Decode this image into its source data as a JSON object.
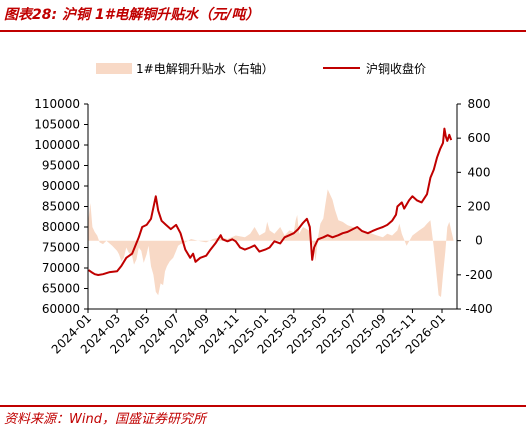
{
  "figure": {
    "title": "图表28:  沪铜 1#电解铜升贴水（元/吨）",
    "source": "资料来源：Wind，国盛证券研究所"
  },
  "colors": {
    "line": "#c00000",
    "area": "#f8d9c6",
    "accent": "#c00000"
  },
  "chart_data": {
    "type": "line",
    "title": "",
    "xlabel": "",
    "ylabel": "",
    "y_left_lim": [
      60000,
      110000
    ],
    "y_left_ticks": [
      "60000",
      "65000",
      "70000",
      "75000",
      "80000",
      "85000",
      "90000",
      "95000",
      "100000",
      "105000",
      "110000"
    ],
    "y_right_lim": [
      -400,
      800
    ],
    "y_right_ticks": [
      "-400",
      "-200",
      "0",
      "200",
      "400",
      "600",
      "800"
    ],
    "x_lim": [
      "2024-01-01",
      "2026-02-01"
    ],
    "x_ticks": [
      "2024-01",
      "2024-03",
      "2024-05",
      "2024-07",
      "2024-09",
      "2024-11",
      "2025-01",
      "2025-03",
      "2025-05",
      "2025-07",
      "2025-09",
      "2025-11",
      "2026-01"
    ],
    "legend": {
      "position": "top"
    },
    "grid": false,
    "series": [
      {
        "name": "1#电解铜升贴水（右轴）",
        "type": "area",
        "axis": "right",
        "points": [
          [
            "2024-01-02",
            130
          ],
          [
            "2024-01-06",
            220
          ],
          [
            "2024-01-10",
            80
          ],
          [
            "2024-01-15",
            50
          ],
          [
            "2024-01-20",
            30
          ],
          [
            "2024-01-25",
            -10
          ],
          [
            "2024-02-01",
            -20
          ],
          [
            "2024-02-08",
            0
          ],
          [
            "2024-02-20",
            -30
          ],
          [
            "2024-03-01",
            -60
          ],
          [
            "2024-03-05",
            -80
          ],
          [
            "2024-03-10",
            -120
          ],
          [
            "2024-03-15",
            -100
          ],
          [
            "2024-03-20",
            -40
          ],
          [
            "2024-03-25",
            -70
          ],
          [
            "2024-04-01",
            -90
          ],
          [
            "2024-04-05",
            -140
          ],
          [
            "2024-04-10",
            -110
          ],
          [
            "2024-04-15",
            -40
          ],
          [
            "2024-04-20",
            -60
          ],
          [
            "2024-04-25",
            -130
          ],
          [
            "2024-05-01",
            -80
          ],
          [
            "2024-05-05",
            -30
          ],
          [
            "2024-05-10",
            -150
          ],
          [
            "2024-05-15",
            -200
          ],
          [
            "2024-05-20",
            -300
          ],
          [
            "2024-05-25",
            -320
          ],
          [
            "2024-05-30",
            -250
          ],
          [
            "2024-06-04",
            -260
          ],
          [
            "2024-06-08",
            -180
          ],
          [
            "2024-06-12",
            -150
          ],
          [
            "2024-06-18",
            -120
          ],
          [
            "2024-06-25",
            -100
          ],
          [
            "2024-07-01",
            -60
          ],
          [
            "2024-07-05",
            -30
          ],
          [
            "2024-07-10",
            -20
          ],
          [
            "2024-07-20",
            -10
          ],
          [
            "2024-08-01",
            10
          ],
          [
            "2024-08-15",
            0
          ],
          [
            "2024-09-01",
            -10
          ],
          [
            "2024-09-15",
            10
          ],
          [
            "2024-10-01",
            20
          ],
          [
            "2024-10-15",
            10
          ],
          [
            "2024-11-01",
            30
          ],
          [
            "2024-11-20",
            20
          ],
          [
            "2024-12-01",
            40
          ],
          [
            "2024-12-10",
            80
          ],
          [
            "2024-12-20",
            30
          ],
          [
            "2025-01-01",
            50
          ],
          [
            "2025-01-05",
            110
          ],
          [
            "2025-01-10",
            60
          ],
          [
            "2025-01-20",
            40
          ],
          [
            "2025-02-01",
            80
          ],
          [
            "2025-02-10",
            30
          ],
          [
            "2025-02-20",
            60
          ],
          [
            "2025-03-01",
            50
          ],
          [
            "2025-03-05",
            120
          ],
          [
            "2025-03-08",
            150
          ],
          [
            "2025-03-12",
            40
          ],
          [
            "2025-03-20",
            80
          ],
          [
            "2025-04-01",
            60
          ],
          [
            "2025-04-10",
            -30
          ],
          [
            "2025-04-15",
            -120
          ],
          [
            "2025-04-20",
            20
          ],
          [
            "2025-04-25",
            100
          ],
          [
            "2025-05-01",
            130
          ],
          [
            "2025-05-05",
            210
          ],
          [
            "2025-05-10",
            300
          ],
          [
            "2025-05-15",
            270
          ],
          [
            "2025-05-20",
            240
          ],
          [
            "2025-05-25",
            180
          ],
          [
            "2025-06-01",
            120
          ],
          [
            "2025-06-10",
            110
          ],
          [
            "2025-06-20",
            90
          ],
          [
            "2025-07-01",
            80
          ],
          [
            "2025-07-10",
            70
          ],
          [
            "2025-07-20",
            60
          ],
          [
            "2025-08-01",
            50
          ],
          [
            "2025-08-10",
            40
          ],
          [
            "2025-08-20",
            30
          ],
          [
            "2025-09-01",
            20
          ],
          [
            "2025-09-10",
            40
          ],
          [
            "2025-09-20",
            30
          ],
          [
            "2025-10-01",
            60
          ],
          [
            "2025-10-05",
            100
          ],
          [
            "2025-10-10",
            40
          ],
          [
            "2025-10-20",
            -30
          ],
          [
            "2025-11-01",
            30
          ],
          [
            "2025-11-15",
            60
          ],
          [
            "2025-11-25",
            80
          ],
          [
            "2025-12-01",
            100
          ],
          [
            "2025-12-08",
            120
          ],
          [
            "2025-12-15",
            -40
          ],
          [
            "2025-12-20",
            -180
          ],
          [
            "2025-12-25",
            -320
          ],
          [
            "2025-12-30",
            -330
          ],
          [
            "2026-01-03",
            -200
          ],
          [
            "2026-01-08",
            -60
          ],
          [
            "2026-01-12",
            80
          ],
          [
            "2026-01-16",
            110
          ],
          [
            "2026-01-20",
            60
          ],
          [
            "2026-01-25",
            0
          ]
        ]
      },
      {
        "name": "沪铜收盘价",
        "type": "line",
        "axis": "left",
        "points": [
          [
            "2024-01-02",
            69500
          ],
          [
            "2024-01-08",
            69000
          ],
          [
            "2024-01-15",
            68500
          ],
          [
            "2024-01-22",
            68300
          ],
          [
            "2024-02-01",
            68500
          ],
          [
            "2024-02-15",
            69000
          ],
          [
            "2024-03-01",
            69200
          ],
          [
            "2024-03-10",
            70500
          ],
          [
            "2024-03-20",
            72500
          ],
          [
            "2024-04-01",
            73500
          ],
          [
            "2024-04-08",
            75500
          ],
          [
            "2024-04-15",
            77500
          ],
          [
            "2024-04-22",
            80000
          ],
          [
            "2024-05-01",
            80500
          ],
          [
            "2024-05-10",
            82000
          ],
          [
            "2024-05-20",
            87500
          ],
          [
            "2024-05-25",
            84000
          ],
          [
            "2024-06-01",
            81500
          ],
          [
            "2024-06-10",
            80500
          ],
          [
            "2024-06-20",
            79500
          ],
          [
            "2024-07-01",
            80500
          ],
          [
            "2024-07-10",
            78500
          ],
          [
            "2024-07-20",
            74500
          ],
          [
            "2024-07-30",
            72500
          ],
          [
            "2024-08-05",
            73500
          ],
          [
            "2024-08-10",
            71500
          ],
          [
            "2024-08-20",
            72500
          ],
          [
            "2024-09-01",
            73000
          ],
          [
            "2024-09-10",
            74500
          ],
          [
            "2024-09-20",
            76000
          ],
          [
            "2024-10-01",
            78000
          ],
          [
            "2024-10-05",
            77000
          ],
          [
            "2024-10-15",
            76500
          ],
          [
            "2024-10-25",
            77000
          ],
          [
            "2024-11-01",
            76500
          ],
          [
            "2024-11-10",
            75000
          ],
          [
            "2024-11-20",
            74500
          ],
          [
            "2024-12-01",
            75000
          ],
          [
            "2024-12-10",
            75500
          ],
          [
            "2024-12-20",
            74000
          ],
          [
            "2025-01-01",
            74500
          ],
          [
            "2025-01-10",
            75000
          ],
          [
            "2025-01-20",
            76500
          ],
          [
            "2025-02-01",
            76000
          ],
          [
            "2025-02-10",
            77500
          ],
          [
            "2025-02-20",
            78000
          ],
          [
            "2025-03-01",
            78500
          ],
          [
            "2025-03-10",
            79500
          ],
          [
            "2025-03-20",
            81000
          ],
          [
            "2025-03-28",
            82000
          ],
          [
            "2025-04-03",
            80000
          ],
          [
            "2025-04-08",
            72000
          ],
          [
            "2025-04-12",
            75000
          ],
          [
            "2025-04-20",
            77000
          ],
          [
            "2025-05-01",
            77500
          ],
          [
            "2025-05-10",
            78000
          ],
          [
            "2025-05-20",
            77500
          ],
          [
            "2025-06-01",
            78000
          ],
          [
            "2025-06-10",
            78500
          ],
          [
            "2025-06-20",
            78800
          ],
          [
            "2025-07-01",
            79500
          ],
          [
            "2025-07-10",
            80000
          ],
          [
            "2025-07-20",
            79000
          ],
          [
            "2025-08-01",
            78500
          ],
          [
            "2025-08-10",
            79000
          ],
          [
            "2025-08-20",
            79500
          ],
          [
            "2025-09-01",
            80000
          ],
          [
            "2025-09-10",
            80500
          ],
          [
            "2025-09-20",
            81500
          ],
          [
            "2025-09-28",
            83000
          ],
          [
            "2025-10-01",
            85000
          ],
          [
            "2025-10-10",
            86000
          ],
          [
            "2025-10-15",
            84500
          ],
          [
            "2025-10-25",
            86500
          ],
          [
            "2025-11-01",
            87500
          ],
          [
            "2025-11-10",
            86500
          ],
          [
            "2025-11-20",
            86000
          ],
          [
            "2025-12-01",
            88000
          ],
          [
            "2025-12-08",
            92000
          ],
          [
            "2025-12-15",
            94000
          ],
          [
            "2025-12-22",
            97000
          ],
          [
            "2025-12-28",
            99000
          ],
          [
            "2026-01-03",
            100500
          ],
          [
            "2026-01-06",
            104000
          ],
          [
            "2026-01-09",
            102000
          ],
          [
            "2026-01-12",
            101000
          ],
          [
            "2026-01-16",
            102500
          ],
          [
            "2026-01-20",
            101200
          ]
        ]
      }
    ]
  }
}
